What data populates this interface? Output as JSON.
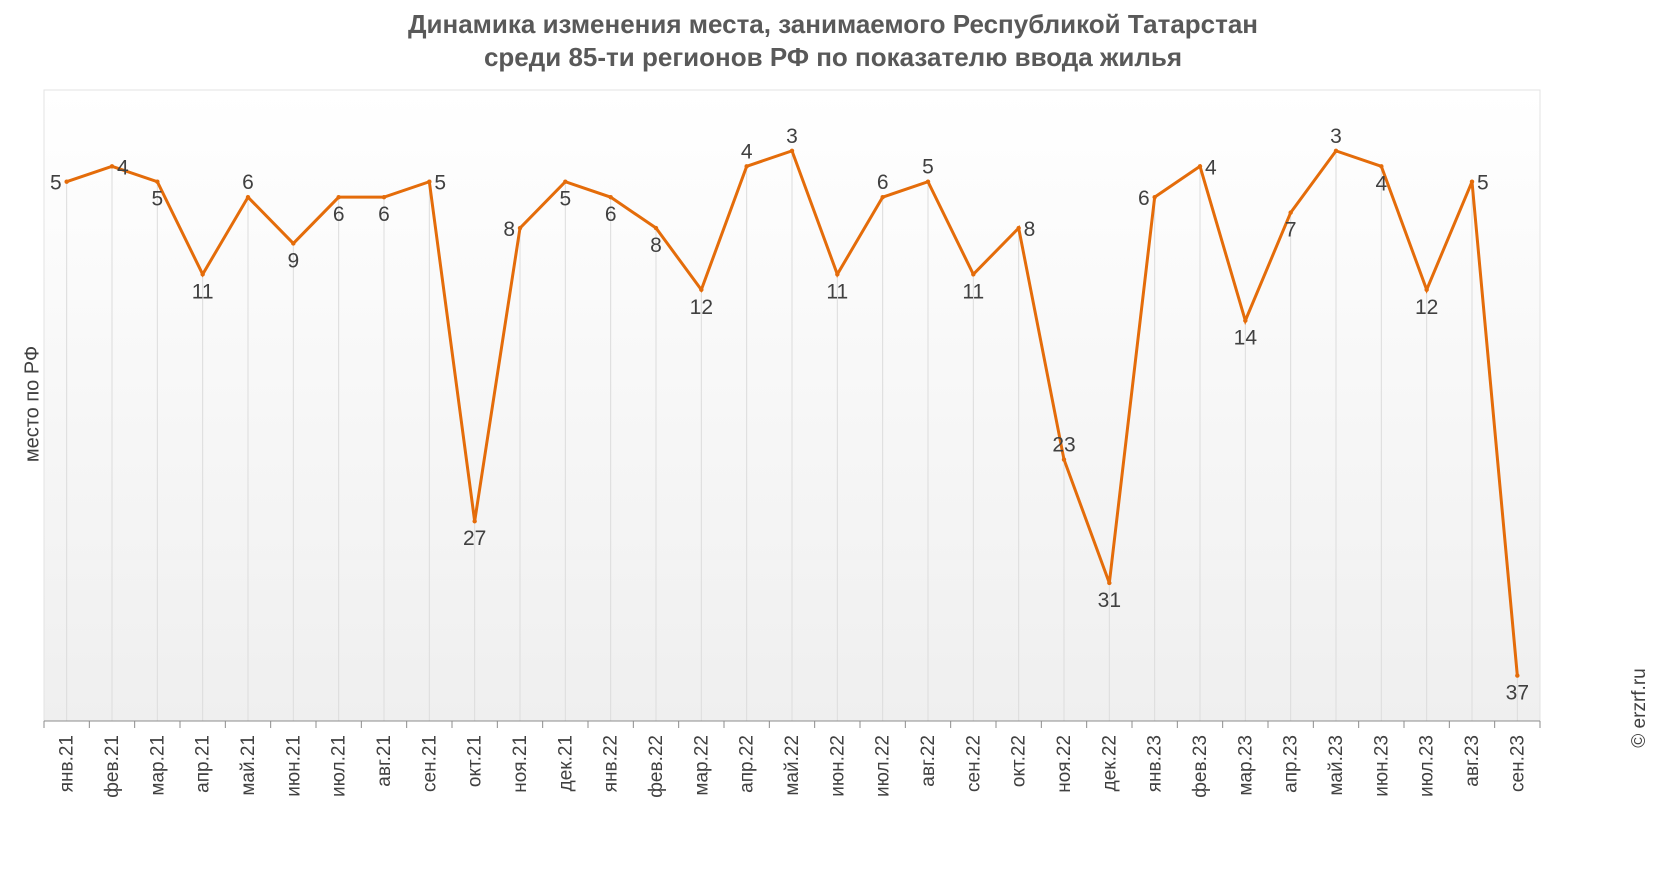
{
  "chart_data": {
    "type": "line",
    "title_lines": [
      "Динамика изменения места, занимаемого Республикой Татарстан",
      "среди 85-ти регионов РФ по показателю ввода жилья"
    ],
    "xlabel": "",
    "ylabel": "место по РФ",
    "categories": [
      "янв.21",
      "фев.21",
      "мар.21",
      "апр.21",
      "май.21",
      "июн.21",
      "июл.21",
      "авг.21",
      "сен.21",
      "окт.21",
      "ноя.21",
      "дек.21",
      "янв.22",
      "фев.22",
      "мар.22",
      "апр.22",
      "май.22",
      "июн.22",
      "июл.22",
      "авг.22",
      "сен.22",
      "окт.22",
      "ноя.22",
      "дек.22",
      "янв.23",
      "фев.23",
      "мар.23",
      "апр.23",
      "май.23",
      "июн.23",
      "июл.23",
      "авг.23",
      "сен.23"
    ],
    "series": [
      {
        "values": [
          5,
          4,
          5,
          11,
          6,
          9,
          6,
          6,
          5,
          27,
          8,
          5,
          6,
          8,
          12,
          4,
          3,
          11,
          6,
          5,
          11,
          8,
          23,
          31,
          6,
          4,
          14,
          7,
          3,
          4,
          12,
          5,
          37
        ],
        "color": "#E46C0A"
      }
    ],
    "y_inverted": true,
    "ylim": [
      1,
      38
    ],
    "grid": "vertical",
    "legend": "none",
    "label_positions": [
      "left",
      "right",
      "below",
      "below",
      "above",
      "below",
      "below",
      "below",
      "right",
      "below",
      "left",
      "below",
      "below",
      "below",
      "below",
      "above",
      "above",
      "below",
      "above",
      "above",
      "below",
      "right",
      "above",
      "below",
      "left",
      "right",
      "below",
      "below",
      "above",
      "below",
      "below",
      "right",
      "below"
    ]
  },
  "watermark": "© erzrf.ru"
}
